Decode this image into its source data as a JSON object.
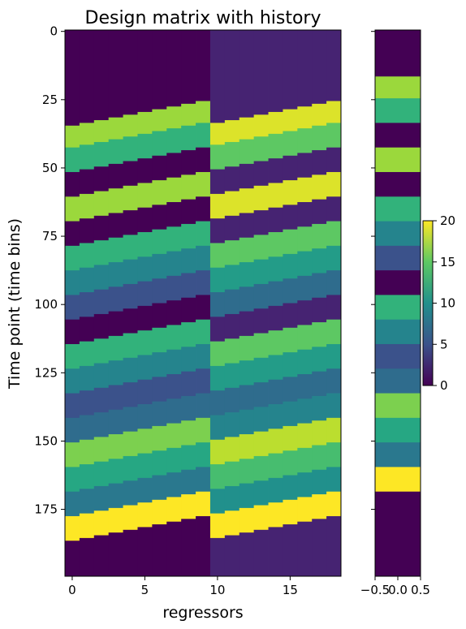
{
  "chart_data": [
    {
      "type": "heatmap",
      "title": "Design matrix with history",
      "xlabel": "regressors",
      "ylabel": "Time point (time bins)",
      "n_rows": 200,
      "n_cols": 19,
      "xticks": [
        0,
        5,
        10,
        15
      ],
      "yticks": [
        0,
        25,
        50,
        75,
        100,
        125,
        150,
        175
      ],
      "xlim": [
        -0.5,
        18.5
      ],
      "ylim": [
        199.5,
        -0.5
      ],
      "colormap": "viridis",
      "history_columns": [
        0,
        1,
        2,
        3,
        4,
        5,
        6,
        7,
        8,
        9
      ],
      "stimulus_column_segments": [
        {
          "start": 0,
          "end": 17,
          "value": 0
        },
        {
          "start": 17,
          "end": 25,
          "value": 17
        },
        {
          "start": 25,
          "end": 34,
          "value": 13
        },
        {
          "start": 34,
          "end": 43,
          "value": 0
        },
        {
          "start": 43,
          "end": 52,
          "value": 17
        },
        {
          "start": 52,
          "end": 61,
          "value": 0
        },
        {
          "start": 61,
          "end": 70,
          "value": 13
        },
        {
          "start": 70,
          "end": 79,
          "value": 9
        },
        {
          "start": 79,
          "end": 88,
          "value": 5
        },
        {
          "start": 88,
          "end": 97,
          "value": 0
        },
        {
          "start": 97,
          "end": 106,
          "value": 13
        },
        {
          "start": 106,
          "end": 115,
          "value": 9
        },
        {
          "start": 115,
          "end": 124,
          "value": 5
        },
        {
          "start": 124,
          "end": 133,
          "value": 7
        },
        {
          "start": 133,
          "end": 142,
          "value": 16
        },
        {
          "start": 142,
          "end": 151,
          "value": 12
        },
        {
          "start": 151,
          "end": 160,
          "value": 8
        },
        {
          "start": 160,
          "end": 169,
          "value": 20
        },
        {
          "start": 169,
          "end": 200,
          "value": 0
        }
      ],
      "right_panel_xticks": [
        "−0.5",
        "0.0",
        "0.5"
      ]
    },
    {
      "type": "colorbar",
      "ticks": [
        0,
        5,
        10,
        15,
        20
      ],
      "vmin": 0,
      "vmax": 20,
      "colormap": "viridis"
    }
  ]
}
